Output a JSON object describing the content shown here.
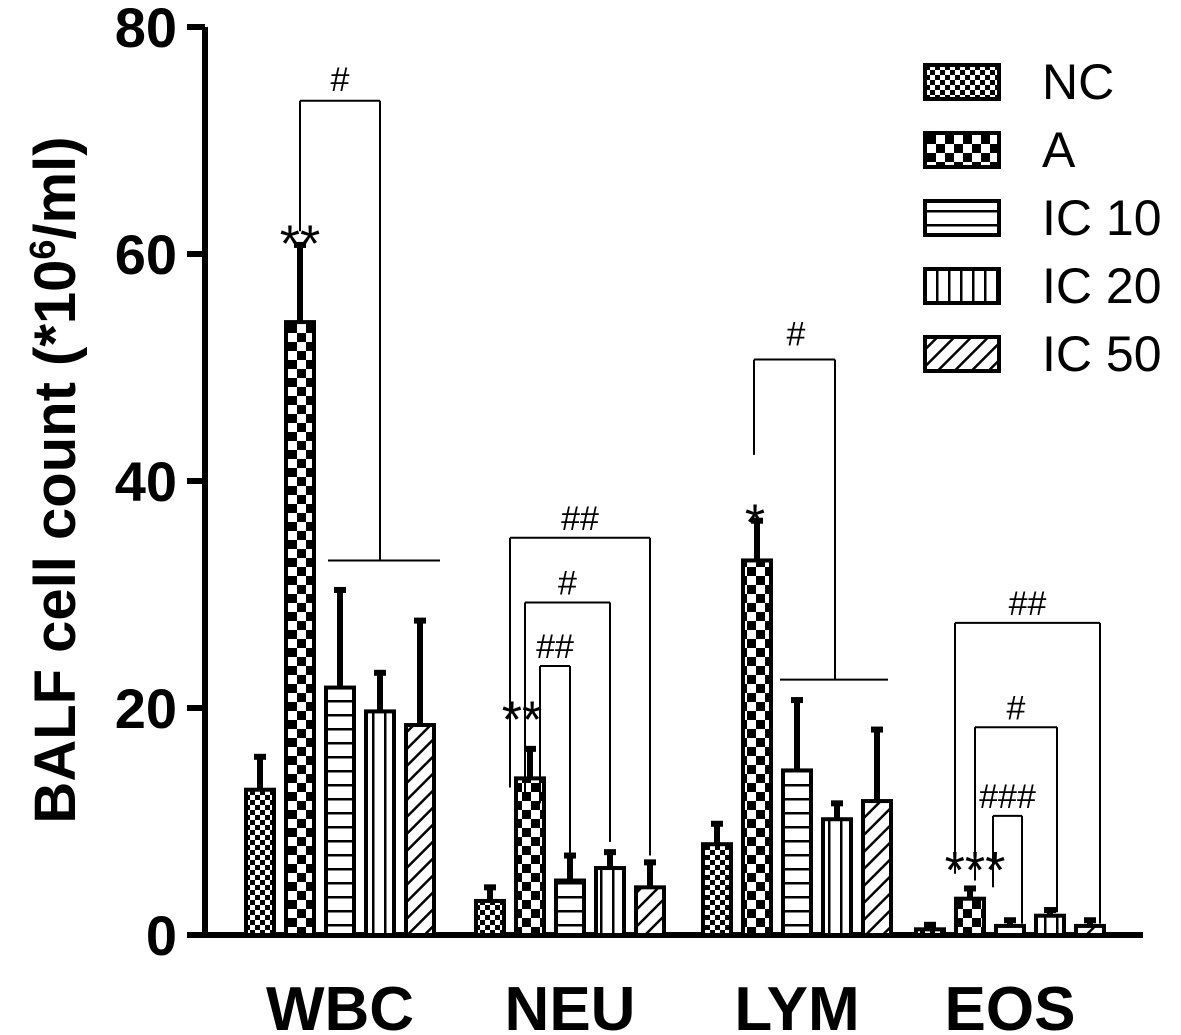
{
  "chart_data": {
    "type": "bar",
    "categories": [
      "WBC",
      "NEU",
      "LYM",
      "EOS"
    ],
    "ylabel": "BALF cell count (*10",
    "ylabel_sup": "6",
    "ylabel_tail": "/ml)",
    "ylim": [
      0,
      80
    ],
    "yticks": [
      "0",
      "20",
      "40",
      "60",
      "80"
    ],
    "series": [
      {
        "name": "NC",
        "pattern": "fine-check",
        "values": [
          12.8,
          3.0,
          8.0,
          0.5
        ],
        "errors": [
          2.9,
          1.2,
          1.8,
          0.4
        ]
      },
      {
        "name": "A",
        "pattern": "large-check",
        "values": [
          54.0,
          13.8,
          33.0,
          3.2
        ],
        "errors": [
          6.8,
          2.6,
          3.5,
          0.9
        ]
      },
      {
        "name": "IC 10",
        "pattern": "horizontal",
        "values": [
          21.8,
          4.8,
          14.5,
          0.8
        ],
        "errors": [
          8.6,
          2.2,
          6.2,
          0.5
        ]
      },
      {
        "name": "IC 20",
        "pattern": "vertical",
        "values": [
          19.7,
          5.9,
          10.2,
          1.7
        ],
        "errors": [
          3.4,
          1.4,
          1.4,
          0.5
        ]
      },
      {
        "name": "IC 50",
        "pattern": "diagonal",
        "values": [
          18.5,
          4.2,
          11.8,
          0.8
        ],
        "errors": [
          9.2,
          2.2,
          6.3,
          0.5
        ]
      }
    ],
    "legend_placement": "top-right",
    "annotations": {
      "WBC": {
        "stars": "**",
        "bracket_label": "#"
      },
      "NEU": {
        "stars": "**",
        "bracket_labels": [
          "##",
          "#",
          "##"
        ]
      },
      "LYM": {
        "stars": "*",
        "bracket_label": "#"
      },
      "EOS": {
        "stars": "***",
        "bracket_labels": [
          "##",
          "#",
          "###"
        ]
      }
    }
  }
}
